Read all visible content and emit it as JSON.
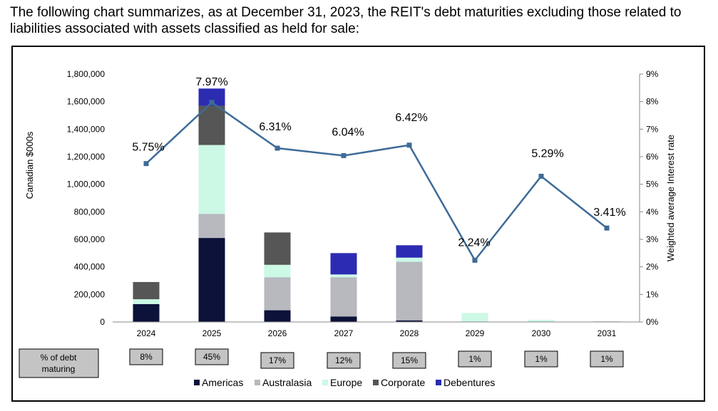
{
  "intro_text": "The following chart summarizes, as at December 31, 2023, the REIT's debt maturities excluding those related to liabilities associated with assets classified as held for sale:",
  "chart_data": {
    "type": "bar",
    "stacked": true,
    "categories": [
      "2024",
      "2025",
      "2026",
      "2027",
      "2028",
      "2029",
      "2030",
      "2031"
    ],
    "ylabel": "Canadian $000s",
    "ylim": [
      0,
      1800000
    ],
    "yticks": [
      "1,800,000",
      "1,600,000",
      "1,400,000",
      "1,200,000",
      "1,000,000",
      "800,000",
      "600,000",
      "400,000",
      "200,000",
      "0"
    ],
    "y2label": "Weighted average Interest rate",
    "y2lim": [
      0,
      9
    ],
    "y2ticks": [
      "9%",
      "8%",
      "7%",
      "6%",
      "5%",
      "4%",
      "3%",
      "2%",
      "1%",
      "0%"
    ],
    "series": [
      {
        "name": "Americas",
        "color": "#0c1239",
        "values": [
          130000,
          610000,
          85000,
          40000,
          12000,
          0,
          0,
          3000
        ]
      },
      {
        "name": "Australasia",
        "color": "#b7b9bf",
        "values": [
          0,
          175000,
          240000,
          285000,
          425000,
          0,
          0,
          0
        ]
      },
      {
        "name": "Europe",
        "color": "#ccf8e6",
        "values": [
          35000,
          500000,
          90000,
          20000,
          30000,
          65000,
          15000,
          0
        ]
      },
      {
        "name": "Corporate",
        "color": "#565656",
        "values": [
          125000,
          285000,
          235000,
          0,
          0,
          0,
          0,
          0
        ]
      },
      {
        "name": "Debentures",
        "color": "#2c2cb3",
        "values": [
          0,
          125000,
          0,
          155000,
          90000,
          0,
          0,
          0
        ]
      }
    ],
    "line": {
      "name": "Weighted average Interest rate",
      "color": "#3e6b97",
      "values": [
        5.75,
        7.97,
        6.31,
        6.04,
        6.42,
        2.24,
        5.29,
        3.41
      ],
      "labels": [
        "5.75%",
        "7.97%",
        "6.31%",
        "6.04%",
        "6.42%",
        "2.24%",
        "5.29%",
        "3.41%"
      ]
    },
    "pct_header": "% of debt maturing",
    "pct_of_debt_maturing": [
      "8%",
      "45%",
      "17%",
      "12%",
      "15%",
      "1%",
      "1%",
      "1%"
    ],
    "legend_position": "bottom"
  }
}
